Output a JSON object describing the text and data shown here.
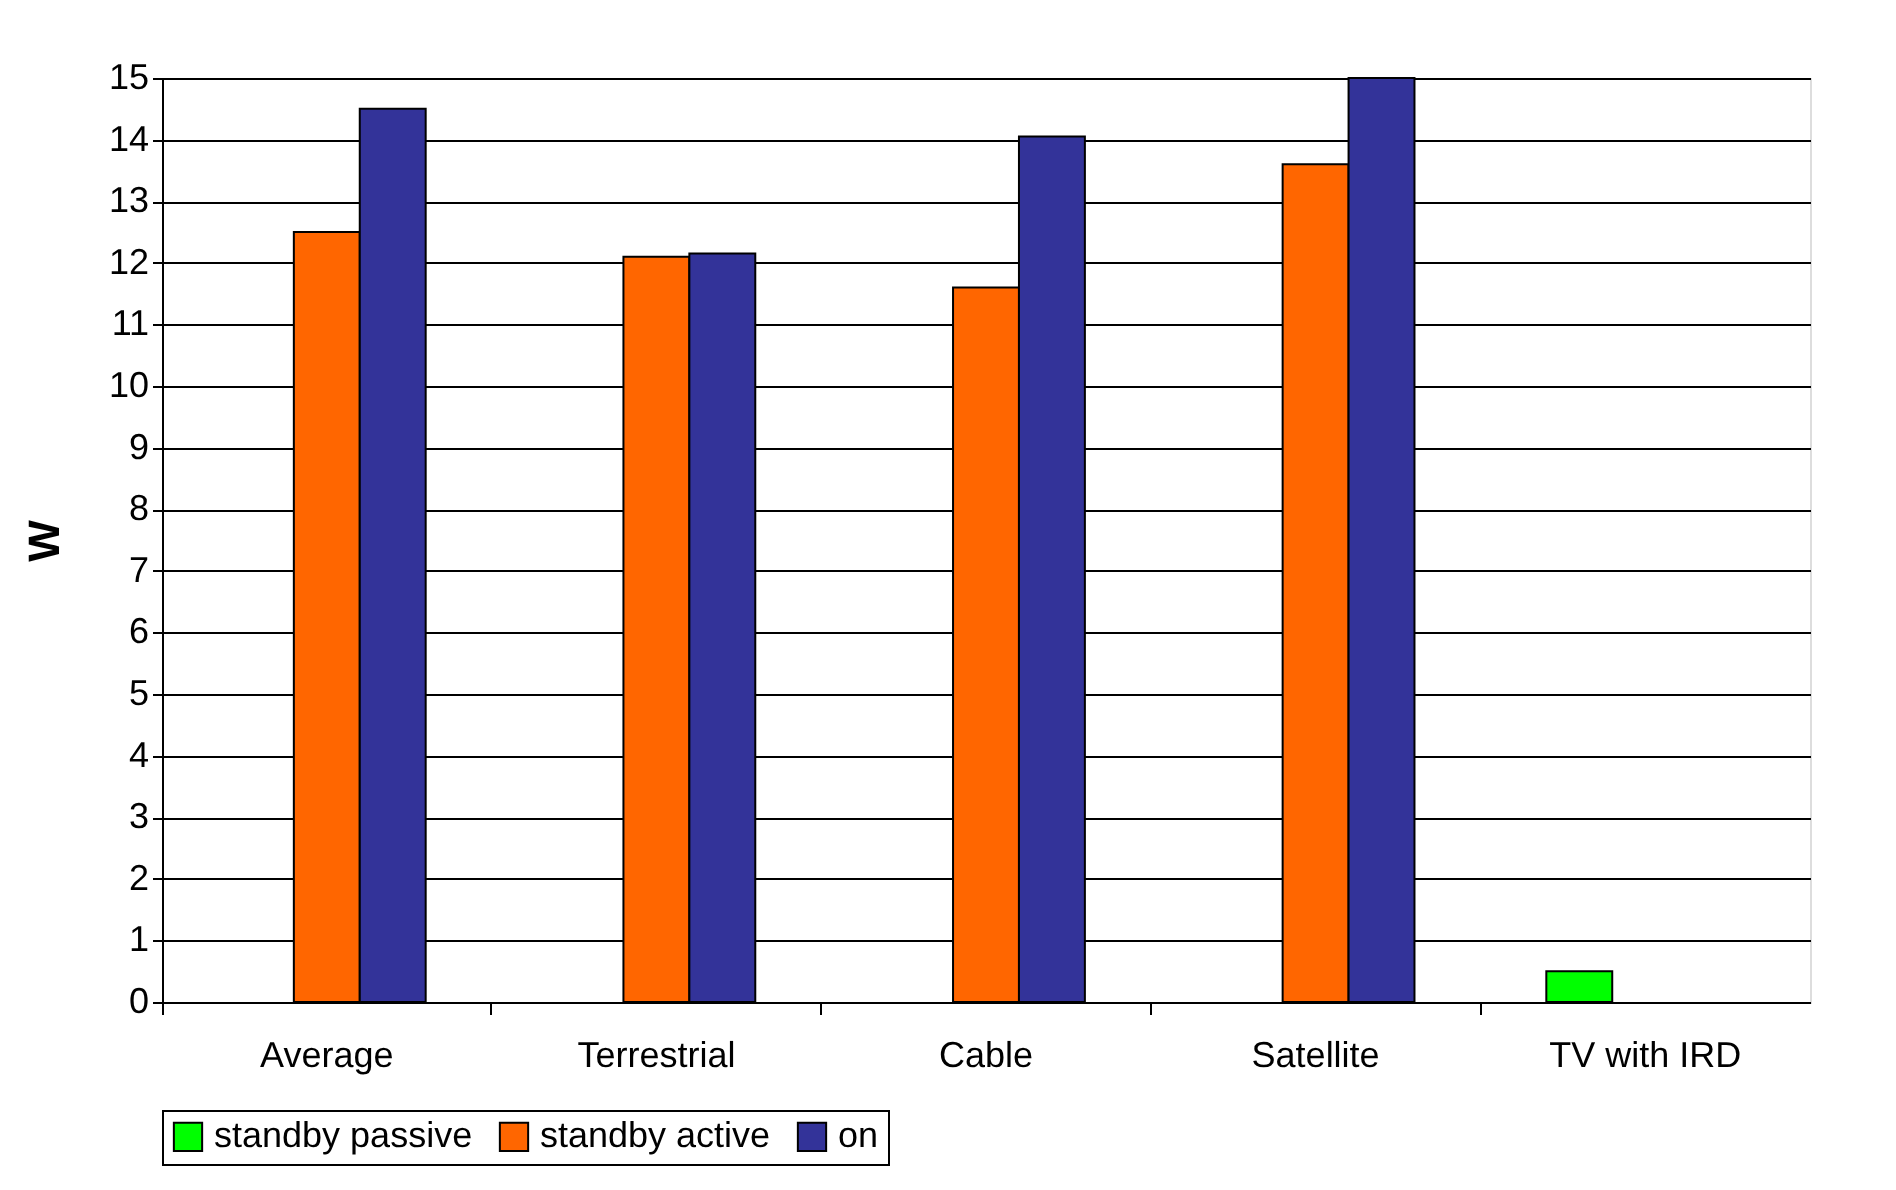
{
  "chart_data": {
    "type": "bar",
    "ylabel": "W",
    "categories": [
      "Average",
      "Terrestrial",
      "Cable",
      "Satellite",
      "TV with IRD"
    ],
    "series": [
      {
        "name": "standby passive",
        "color": "#00ff00",
        "values": [
          null,
          null,
          null,
          null,
          0.5
        ]
      },
      {
        "name": "standby active",
        "color": "#ff6600",
        "values": [
          12.5,
          12.1,
          11.6,
          13.6,
          null
        ]
      },
      {
        "name": "on",
        "color": "#333399",
        "values": [
          14.5,
          12.15,
          14.05,
          15.0,
          null
        ]
      }
    ],
    "ylim": [
      0,
      15
    ],
    "yticks": [
      0,
      1,
      2,
      3,
      4,
      5,
      6,
      7,
      8,
      9,
      10,
      11,
      12,
      13,
      14,
      15
    ],
    "grid": "y",
    "legend": "bottom"
  }
}
